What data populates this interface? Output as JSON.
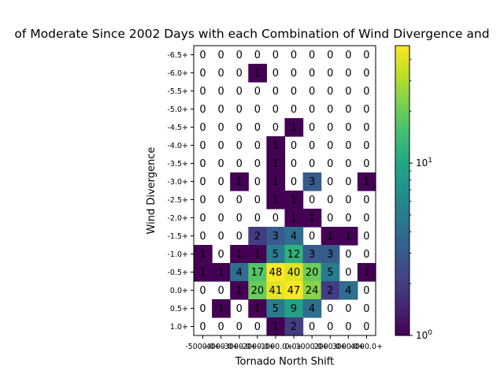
{
  "chart_data": {
    "type": "heatmap",
    "title": "of Moderate Since 2002 Days with each Combination of Wind Divergence and",
    "xlabel": "Tornado North Shift",
    "ylabel": "Wind Divergence",
    "x_tick_labels": [
      "-5000.0+",
      "-4000.0+",
      "-3000.0+",
      "-2000.0+",
      "-1000.0+",
      "0.0+",
      "1000.0+",
      "2000.0+",
      "3000.0+",
      "4000.0+"
    ],
    "y_tick_labels": [
      "-6.5+",
      "-6.0+",
      "-5.5+",
      "-5.0+",
      "-4.5+",
      "-4.0+",
      "-3.5+",
      "-3.0+",
      "-2.5+",
      "-2.0+",
      "-1.5+",
      "-1.0+",
      "-0.5+",
      "0.0+",
      "0.5+",
      "1.0+"
    ],
    "values": [
      [
        0,
        0,
        0,
        0,
        0,
        0,
        0,
        0,
        0,
        0
      ],
      [
        0,
        0,
        0,
        1,
        0,
        0,
        0,
        0,
        0,
        0
      ],
      [
        0,
        0,
        0,
        0,
        0,
        0,
        0,
        0,
        0,
        0
      ],
      [
        0,
        0,
        0,
        0,
        0,
        0,
        0,
        0,
        0,
        0
      ],
      [
        0,
        0,
        0,
        0,
        0,
        1,
        0,
        0,
        0,
        0
      ],
      [
        0,
        0,
        0,
        0,
        1,
        0,
        0,
        0,
        0,
        0
      ],
      [
        0,
        0,
        0,
        0,
        1,
        0,
        0,
        0,
        0,
        0
      ],
      [
        0,
        0,
        1,
        0,
        1,
        0,
        3,
        0,
        0,
        1
      ],
      [
        0,
        0,
        0,
        0,
        1,
        1,
        0,
        0,
        0,
        0
      ],
      [
        0,
        0,
        0,
        0,
        0,
        1,
        1,
        0,
        0,
        0
      ],
      [
        0,
        0,
        0,
        2,
        3,
        4,
        0,
        1,
        1,
        0
      ],
      [
        1,
        0,
        1,
        1,
        5,
        12,
        3,
        3,
        0,
        0
      ],
      [
        1,
        1,
        4,
        17,
        48,
        40,
        20,
        5,
        0,
        1
      ],
      [
        0,
        0,
        1,
        20,
        41,
        47,
        24,
        2,
        4,
        0
      ],
      [
        0,
        1,
        0,
        1,
        5,
        9,
        4,
        0,
        0,
        0
      ],
      [
        0,
        0,
        0,
        0,
        1,
        2,
        0,
        0,
        0,
        0
      ]
    ],
    "colorbar": {
      "scale": "log",
      "range": [
        1,
        48
      ],
      "colormap": "viridis",
      "tick_values": [
        1,
        10
      ],
      "tick_labels": [
        "10^0",
        "10^1"
      ]
    },
    "zero_cells_color": "#ffffff",
    "grid": false
  }
}
